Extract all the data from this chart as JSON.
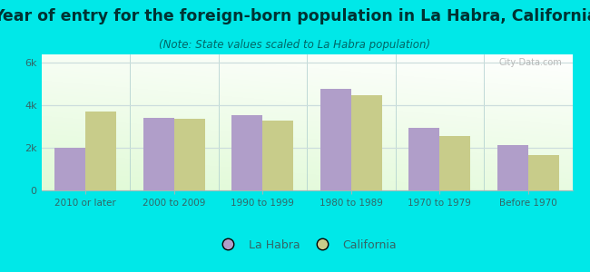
{
  "title": "Year of entry for the foreign-born population in La Habra, California",
  "subtitle": "(Note: State values scaled to La Habra population)",
  "categories": [
    "2010 or later",
    "2000 to 2009",
    "1990 to 1999",
    "1980 to 1989",
    "1970 to 1979",
    "Before 1970"
  ],
  "la_habra": [
    2000,
    3400,
    3550,
    4800,
    2950,
    2150
  ],
  "california": [
    3700,
    3350,
    3300,
    4500,
    2550,
    1650
  ],
  "la_habra_color": "#b09ec9",
  "california_color": "#c8cc8a",
  "background_outer": "#00e8e8",
  "ytick_labels": [
    "0",
    "2k",
    "4k",
    "6k"
  ],
  "ytick_values": [
    0,
    2000,
    4000,
    6000
  ],
  "ylim": [
    0,
    6400
  ],
  "bar_width": 0.35,
  "title_fontsize": 12.5,
  "subtitle_fontsize": 8.5,
  "legend_label_1": "La Habra",
  "legend_label_2": "California",
  "watermark": "City-Data.com",
  "title_color": "#003333",
  "subtitle_color": "#006666",
  "tick_color": "#336666",
  "grid_color": "#ccdddd"
}
